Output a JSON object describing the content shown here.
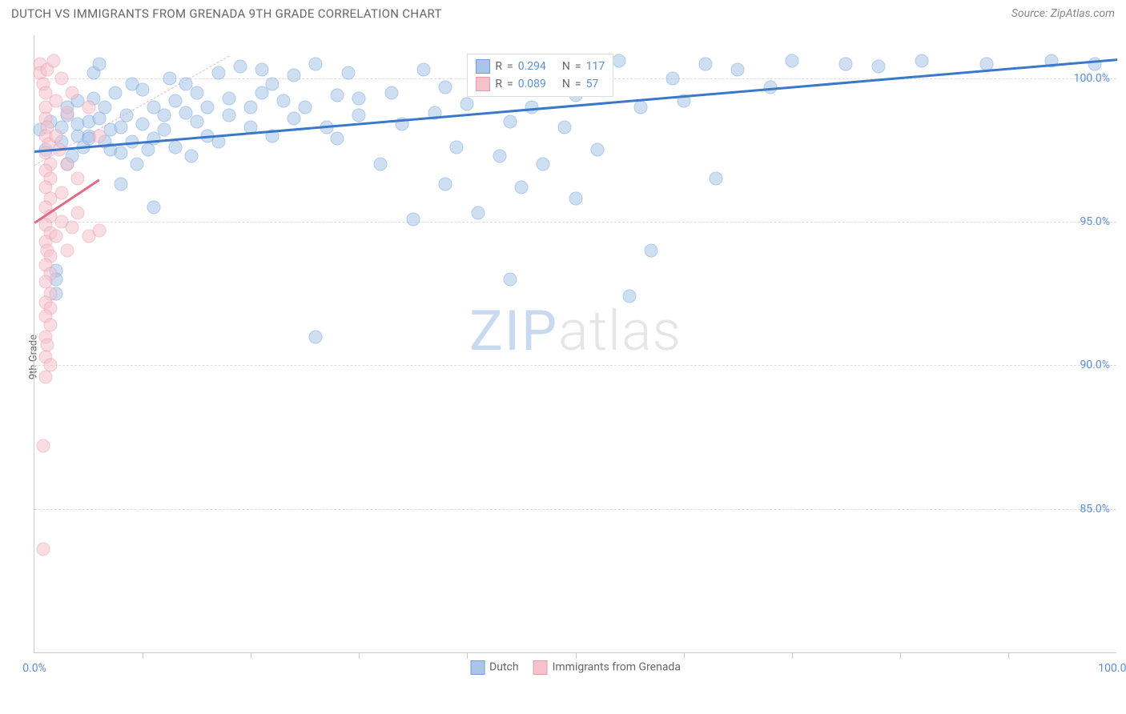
{
  "title": "DUTCH VS IMMIGRANTS FROM GRENADA 9TH GRADE CORRELATION CHART",
  "source": "Source: ZipAtlas.com",
  "ylabel": "9th Grade",
  "watermark": {
    "part1": "ZIP",
    "part2": "atlas"
  },
  "chart": {
    "type": "scatter",
    "background_color": "#ffffff",
    "grid_color": "#dddddd",
    "axis_color": "#cccccc",
    "tick_label_color": "#5b8fd6",
    "xlim": [
      0,
      100
    ],
    "ylim": [
      80,
      101.5
    ],
    "yticks": [
      {
        "value": 85.0,
        "label": "85.0%"
      },
      {
        "value": 90.0,
        "label": "90.0%"
      },
      {
        "value": 95.0,
        "label": "95.0%"
      },
      {
        "value": 100.0,
        "label": "100.0%"
      }
    ],
    "xticks_minor": [
      10,
      20,
      30,
      40,
      50,
      60,
      70,
      80,
      90
    ],
    "xtick_labels": [
      {
        "value": 0,
        "label": "0.0%"
      },
      {
        "value": 100,
        "label": "100.0%"
      }
    ],
    "marker_radius": 8.5,
    "marker_opacity": 0.55,
    "series": [
      {
        "name": "Dutch",
        "color_fill": "#a9c6e8",
        "color_stroke": "#6f9fd8",
        "trend": {
          "x1": 0,
          "y1": 97.5,
          "x2": 100,
          "y2": 100.7,
          "color": "#3b78c9",
          "width": 2.5
        },
        "r_value": "0.294",
        "n_value": "117",
        "points": [
          [
            0.5,
            98.2
          ],
          [
            1,
            97.5
          ],
          [
            1.5,
            98.5
          ],
          [
            2,
            93.3
          ],
          [
            2,
            93.0
          ],
          [
            2,
            92.5
          ],
          [
            2.5,
            97.8
          ],
          [
            2.5,
            98.3
          ],
          [
            3,
            98.7
          ],
          [
            3,
            99.0
          ],
          [
            3,
            97.0
          ],
          [
            3.5,
            97.3
          ],
          [
            4,
            98.0
          ],
          [
            4,
            98.4
          ],
          [
            4,
            99.2
          ],
          [
            4.5,
            97.6
          ],
          [
            5,
            98.0
          ],
          [
            5,
            98.5
          ],
          [
            5,
            97.9
          ],
          [
            5.5,
            99.3
          ],
          [
            5.5,
            100.2
          ],
          [
            6,
            98.6
          ],
          [
            6,
            100.5
          ],
          [
            6.5,
            97.8
          ],
          [
            6.5,
            99.0
          ],
          [
            7,
            98.2
          ],
          [
            7,
            97.5
          ],
          [
            7.5,
            99.5
          ],
          [
            8,
            98.3
          ],
          [
            8,
            97.4
          ],
          [
            8,
            96.3
          ],
          [
            8.5,
            98.7
          ],
          [
            9,
            97.8
          ],
          [
            9,
            99.8
          ],
          [
            9.5,
            97.0
          ],
          [
            10,
            98.4
          ],
          [
            10,
            99.6
          ],
          [
            10.5,
            97.5
          ],
          [
            11,
            99.0
          ],
          [
            11,
            97.9
          ],
          [
            11,
            95.5
          ],
          [
            12,
            98.2
          ],
          [
            12,
            98.7
          ],
          [
            12.5,
            100.0
          ],
          [
            13,
            97.6
          ],
          [
            13,
            99.2
          ],
          [
            14,
            98.8
          ],
          [
            14,
            99.8
          ],
          [
            14.5,
            97.3
          ],
          [
            15,
            98.5
          ],
          [
            15,
            99.5
          ],
          [
            16,
            98.0
          ],
          [
            16,
            99.0
          ],
          [
            17,
            97.8
          ],
          [
            17,
            100.2
          ],
          [
            18,
            98.7
          ],
          [
            18,
            99.3
          ],
          [
            19,
            100.4
          ],
          [
            20,
            99.0
          ],
          [
            20,
            98.3
          ],
          [
            21,
            99.5
          ],
          [
            21,
            100.3
          ],
          [
            22,
            98.0
          ],
          [
            22,
            99.8
          ],
          [
            23,
            99.2
          ],
          [
            24,
            98.6
          ],
          [
            24,
            100.1
          ],
          [
            25,
            99.0
          ],
          [
            26,
            91.0
          ],
          [
            26,
            100.5
          ],
          [
            27,
            98.3
          ],
          [
            28,
            99.4
          ],
          [
            28,
            97.9
          ],
          [
            29,
            100.2
          ],
          [
            30,
            98.7
          ],
          [
            30,
            99.3
          ],
          [
            32,
            97.0
          ],
          [
            33,
            99.5
          ],
          [
            34,
            98.4
          ],
          [
            35,
            95.1
          ],
          [
            36,
            100.3
          ],
          [
            37,
            98.8
          ],
          [
            38,
            96.3
          ],
          [
            38,
            99.7
          ],
          [
            39,
            97.6
          ],
          [
            40,
            99.1
          ],
          [
            41,
            95.3
          ],
          [
            42,
            100.4
          ],
          [
            43,
            97.3
          ],
          [
            44,
            98.5
          ],
          [
            44,
            93.0
          ],
          [
            45,
            96.2
          ],
          [
            46,
            99.0
          ],
          [
            47,
            97.0
          ],
          [
            48,
            100.2
          ],
          [
            49,
            98.3
          ],
          [
            50,
            99.4
          ],
          [
            50,
            95.8
          ],
          [
            51,
            100.5
          ],
          [
            52,
            97.5
          ],
          [
            54,
            100.6
          ],
          [
            55,
            92.4
          ],
          [
            56,
            99.0
          ],
          [
            57,
            94.0
          ],
          [
            59,
            100.0
          ],
          [
            60,
            99.2
          ],
          [
            62,
            100.5
          ],
          [
            63,
            96.5
          ],
          [
            65,
            100.3
          ],
          [
            68,
            99.7
          ],
          [
            70,
            100.6
          ],
          [
            75,
            100.5
          ],
          [
            78,
            100.4
          ],
          [
            82,
            100.6
          ],
          [
            88,
            100.5
          ],
          [
            94,
            100.6
          ],
          [
            98,
            100.5
          ]
        ]
      },
      {
        "name": "Immigrants from Grenada",
        "color_fill": "#f5c2cc",
        "color_stroke": "#e89aad",
        "trend": {
          "x1": 0,
          "y1": 95.0,
          "x2": 6,
          "y2": 96.5,
          "color": "#e06b85",
          "width": 2.5
        },
        "r_value": "0.089",
        "n_value": "57",
        "points": [
          [
            0.5,
            100.5
          ],
          [
            0.5,
            100.2
          ],
          [
            0.8,
            99.8
          ],
          [
            1,
            99.5
          ],
          [
            1,
            99.0
          ],
          [
            1,
            98.6
          ],
          [
            1.2,
            98.3
          ],
          [
            1,
            98.0
          ],
          [
            1.3,
            97.7
          ],
          [
            1,
            97.4
          ],
          [
            1.5,
            97.0
          ],
          [
            1,
            96.8
          ],
          [
            1.5,
            96.5
          ],
          [
            1,
            96.2
          ],
          [
            1.5,
            95.8
          ],
          [
            1,
            95.5
          ],
          [
            1.5,
            95.2
          ],
          [
            1,
            94.9
          ],
          [
            1.5,
            94.6
          ],
          [
            1,
            94.3
          ],
          [
            1.2,
            94.0
          ],
          [
            1.5,
            93.8
          ],
          [
            1,
            93.5
          ],
          [
            1.5,
            93.2
          ],
          [
            1,
            92.9
          ],
          [
            1.5,
            92.5
          ],
          [
            1,
            92.2
          ],
          [
            1.5,
            92.0
          ],
          [
            1,
            91.7
          ],
          [
            1.5,
            91.4
          ],
          [
            1,
            91.0
          ],
          [
            1.2,
            90.7
          ],
          [
            1,
            90.3
          ],
          [
            1.5,
            90.0
          ],
          [
            1,
            89.6
          ],
          [
            2,
            94.5
          ],
          [
            2,
            98.0
          ],
          [
            2,
            99.2
          ],
          [
            2.3,
            97.5
          ],
          [
            2.5,
            96.0
          ],
          [
            2.5,
            100.0
          ],
          [
            2.5,
            95.0
          ],
          [
            3,
            94.0
          ],
          [
            3,
            98.8
          ],
          [
            3,
            97.0
          ],
          [
            3.5,
            99.5
          ],
          [
            3.5,
            94.8
          ],
          [
            4,
            96.5
          ],
          [
            4,
            95.3
          ],
          [
            5,
            94.5
          ],
          [
            5,
            99.0
          ],
          [
            6,
            94.7
          ],
          [
            6,
            98.0
          ],
          [
            0.8,
            87.2
          ],
          [
            0.8,
            83.6
          ],
          [
            1.2,
            100.3
          ],
          [
            1.8,
            100.6
          ]
        ]
      }
    ],
    "perfect_correlation_line": {
      "x1": 0,
      "y1": 97.0,
      "x2": 18,
      "y2": 100.8,
      "color": "#e8b8c0"
    },
    "legend_box": {
      "left_pct": 40,
      "top_pct": 3
    },
    "legend_labels": {
      "r": "R",
      "n": "N",
      "eq": "="
    },
    "bottom_legend": [
      {
        "label": "Dutch",
        "fill": "#a9c6e8",
        "stroke": "#6f9fd8"
      },
      {
        "label": "Immigrants from Grenada",
        "fill": "#f5c2cc",
        "stroke": "#e89aad"
      }
    ]
  }
}
